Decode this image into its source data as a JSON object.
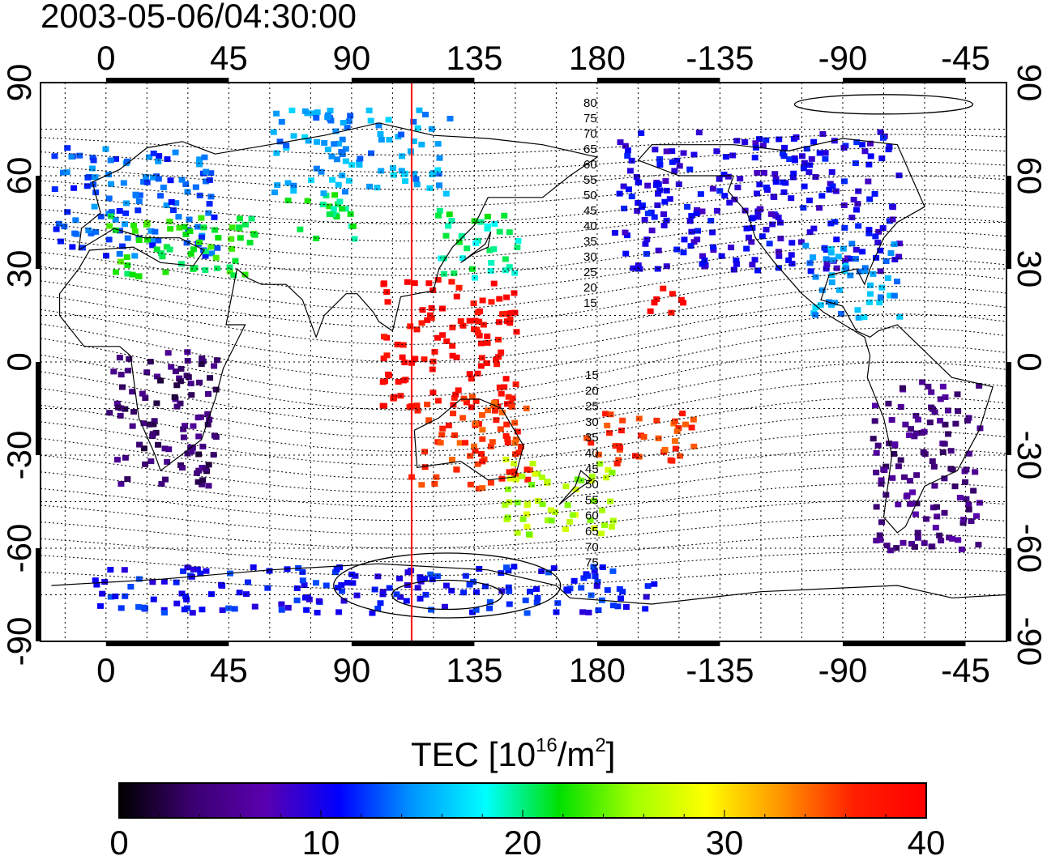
{
  "title": "2003-05-06/04:30:00",
  "map": {
    "lon_ticks": [
      "0",
      "45",
      "90",
      "135",
      "180",
      "-135",
      "-90",
      "-45"
    ],
    "lon_tick_values": [
      0,
      45,
      90,
      135,
      180,
      225,
      270,
      315
    ],
    "lon_range": [
      -24,
      330
    ],
    "lat_ticks": [
      "90",
      "60",
      "30",
      "0",
      "-30",
      "-60",
      "-90"
    ],
    "lat_tick_values": [
      90,
      60,
      30,
      0,
      -30,
      -60,
      -90
    ],
    "lat_range": [
      -90,
      90
    ],
    "meridian_lon": 112,
    "grid": true,
    "contour_labels_north": [
      "80",
      "75",
      "70",
      "65",
      "60",
      "55",
      "50",
      "45",
      "40",
      "35",
      "30",
      "25",
      "20",
      "15"
    ],
    "contour_labels_south": [
      "15",
      "20",
      "25",
      "30",
      "35",
      "40",
      "45",
      "50",
      "55",
      "60",
      "65",
      "70",
      "75"
    ],
    "colors": {
      "meridian": "#ff0000",
      "frame": "#000000"
    }
  },
  "colorbar": {
    "label_main": "TEC  [10",
    "label_sup1": "16",
    "label_mid": "/m",
    "label_sup2": "2",
    "label_end": "]",
    "ticks": [
      "0",
      "10",
      "20",
      "30",
      "40"
    ],
    "range": [
      0,
      40
    ],
    "stops": [
      "#000000",
      "#3a0070",
      "#5a00b0",
      "#0000ff",
      "#0096ff",
      "#00ffff",
      "#00e000",
      "#a0ff00",
      "#ffff00",
      "#ff9600",
      "#ff2000",
      "#ff0000"
    ]
  },
  "chart_data": {
    "type": "heatmap",
    "title": "2003-05-06/04:30:00",
    "variable": "TEC",
    "units": "10^16/m^2",
    "zlim": [
      0,
      40
    ],
    "regions": [
      {
        "lon": [
          -20,
          40
        ],
        "lat": [
          35,
          70
        ],
        "value": 13
      },
      {
        "lon": [
          0,
          55
        ],
        "lat": [
          28,
          48
        ],
        "value": 22
      },
      {
        "lon": [
          65,
          90
        ],
        "lat": [
          40,
          55
        ],
        "value": 21
      },
      {
        "lon": [
          120,
          150
        ],
        "lat": [
          28,
          50
        ],
        "value": 20
      },
      {
        "lon": [
          100,
          150
        ],
        "lat": [
          -15,
          28
        ],
        "value": 39
      },
      {
        "lon": [
          110,
          155
        ],
        "lat": [
          -40,
          -10
        ],
        "value": 36
      },
      {
        "lon": [
          145,
          185
        ],
        "lat": [
          -55,
          -30
        ],
        "value": 26
      },
      {
        "lon": [
          175,
          215
        ],
        "lat": [
          -32,
          -15
        ],
        "value": 36
      },
      {
        "lon": [
          197,
          212
        ],
        "lat": [
          15,
          25
        ],
        "value": 39
      },
      {
        "lon": [
          0,
          40
        ],
        "lat": [
          -40,
          5
        ],
        "value": 4
      },
      {
        "lon": [
          185,
          290
        ],
        "lat": [
          30,
          75
        ],
        "value": 10
      },
      {
        "lon": [
          255,
          290
        ],
        "lat": [
          15,
          40
        ],
        "value": 15
      },
      {
        "lon": [
          280,
          320
        ],
        "lat": [
          -60,
          -5
        ],
        "value": 5
      },
      {
        "lon": [
          -10,
          200
        ],
        "lat": [
          -80,
          -65
        ],
        "value": 11
      },
      {
        "lon": [
          60,
          125
        ],
        "lat": [
          55,
          82
        ],
        "value": 15
      }
    ]
  }
}
